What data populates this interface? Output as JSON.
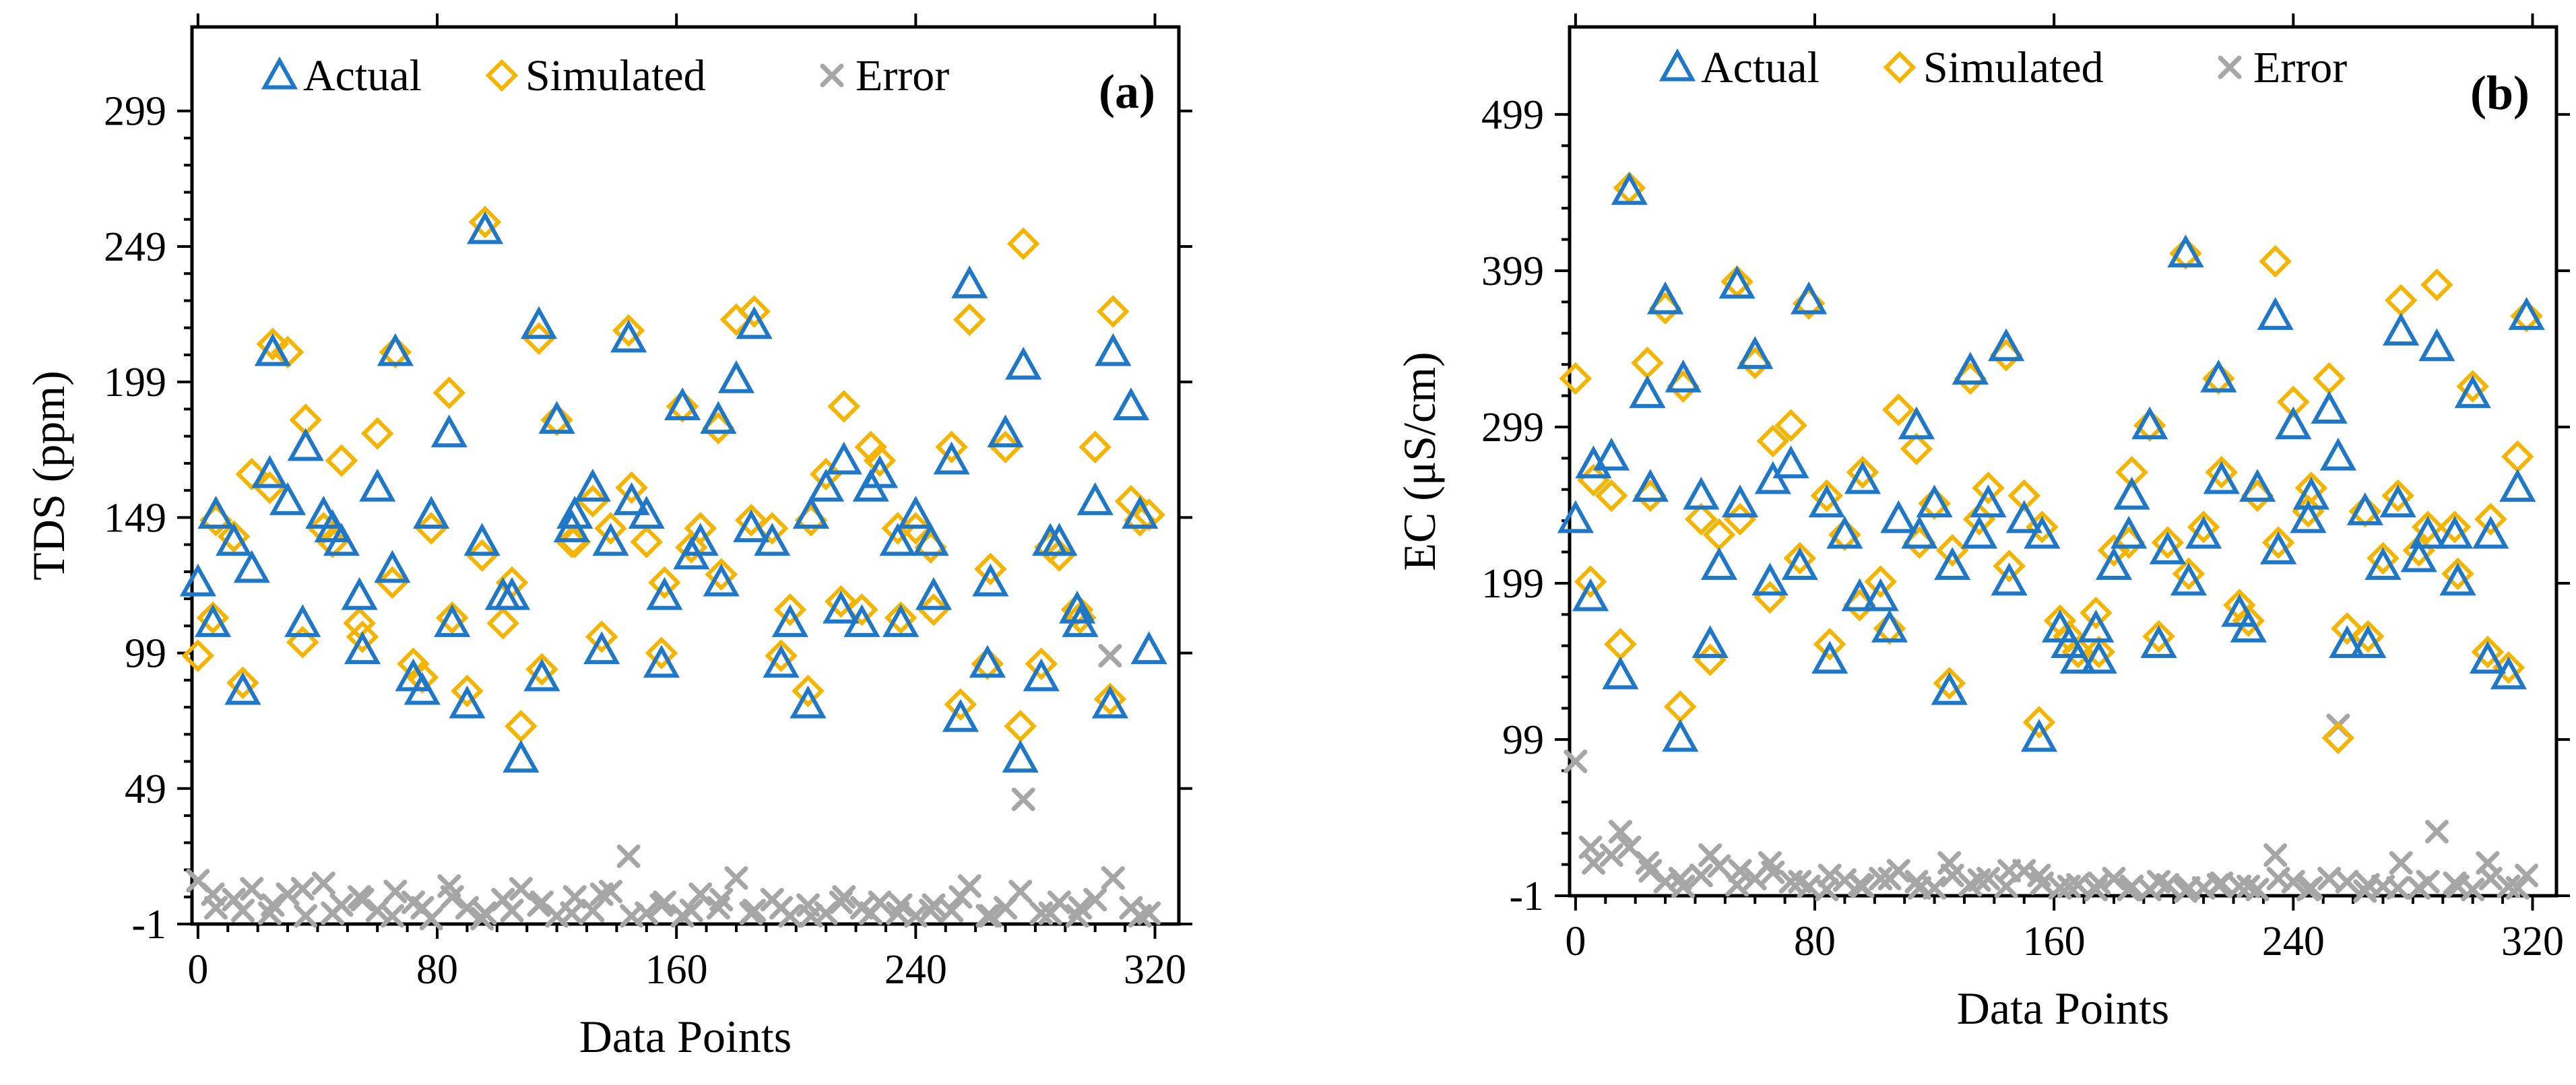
{
  "colors": {
    "actual": "#1f77c8",
    "simulated": "#f5b400",
    "error": "#a6a6a6",
    "axis": "#000000"
  },
  "icons": {
    "actual": "triangle-outline-icon",
    "simulated": "diamond-outline-icon",
    "error": "x-cross-icon"
  },
  "chart_data": [
    {
      "type": "scatter",
      "panel_label": "(a)",
      "title": "",
      "xlabel": "Data Points",
      "ylabel": "TDS (ppm)",
      "xlim": [
        -2,
        328
      ],
      "ylim": [
        -1,
        330
      ],
      "xticks": [
        0,
        80,
        160,
        240,
        320
      ],
      "yticks": [
        -1,
        49,
        99,
        149,
        199,
        249,
        299
      ],
      "legend": [
        "Actual",
        "Simulated",
        "Error"
      ],
      "legend_position": "top",
      "series": [
        {
          "name": "Actual",
          "x": [
            0,
            6,
            12,
            18,
            24,
            30,
            36,
            42,
            48,
            54,
            60,
            66,
            72,
            78,
            84,
            90,
            96,
            102,
            108,
            114,
            120,
            126,
            132,
            138,
            144,
            150,
            156,
            162,
            168,
            174,
            180,
            186,
            192,
            198,
            204,
            210,
            216,
            222,
            228,
            234,
            240,
            246,
            252,
            258,
            264,
            270,
            276,
            282,
            288,
            294,
            300,
            306,
            312,
            318,
            5,
            15,
            25,
            35,
            45,
            55,
            65,
            75,
            85,
            95,
            105,
            115,
            125,
            135,
            145,
            155,
            165,
            175,
            185,
            195,
            205,
            215,
            225,
            235,
            245,
            255,
            265,
            275,
            285,
            295,
            305,
            315
          ],
          "y": [
            125,
            150,
            140,
            130,
            165,
            155,
            175,
            150,
            140,
            120,
            160,
            210,
            90,
            150,
            180,
            80,
            255,
            120,
            60,
            220,
            185,
            150,
            160,
            140,
            215,
            150,
            120,
            190,
            140,
            185,
            200,
            220,
            140,
            110,
            80,
            160,
            170,
            110,
            165,
            140,
            150,
            120,
            170,
            235,
            95,
            180,
            205,
            90,
            140,
            115,
            155,
            210,
            190,
            100,
            110,
            85,
            210,
            110,
            145,
            100,
            130,
            85,
            110,
            140,
            120,
            90,
            145,
            100,
            155,
            95,
            135,
            125,
            145,
            95,
            150,
            115,
            160,
            110,
            140,
            75,
            125,
            60,
            140,
            110,
            80,
            150
          ]
        },
        {
          "name": "Simulated",
          "x": [
            0,
            6,
            12,
            18,
            24,
            30,
            36,
            42,
            48,
            54,
            60,
            66,
            72,
            78,
            84,
            90,
            96,
            102,
            108,
            114,
            120,
            126,
            132,
            138,
            144,
            150,
            156,
            162,
            168,
            174,
            180,
            186,
            192,
            198,
            204,
            210,
            216,
            222,
            228,
            234,
            240,
            246,
            252,
            258,
            264,
            270,
            276,
            282,
            288,
            294,
            300,
            306,
            312,
            318,
            5,
            15,
            25,
            35,
            45,
            55,
            65,
            75,
            85,
            95,
            105,
            115,
            125,
            135,
            145,
            155,
            165,
            175,
            185,
            195,
            205,
            215,
            225,
            235,
            245,
            255,
            265,
            275,
            285,
            295,
            305,
            315
          ],
          "y": [
            98,
            148,
            142,
            165,
            160,
            210,
            185,
            145,
            170,
            110,
            180,
            210,
            95,
            145,
            195,
            85,
            258,
            110,
            72,
            215,
            185,
            140,
            155,
            145,
            218,
            140,
            125,
            190,
            145,
            182,
            222,
            225,
            145,
            115,
            85,
            165,
            190,
            115,
            170,
            145,
            145,
            115,
            175,
            222,
            95,
            175,
            250,
            95,
            135,
            115,
            175,
            225,
            155,
            150,
            112,
            88,
            213,
            103,
            140,
            105,
            125,
            90,
            112,
            135,
            125,
            93,
            140,
            105,
            160,
            99,
            138,
            128,
            148,
            98,
            148,
            118,
            175,
            112,
            138,
            80,
            130,
            72,
            138,
            112,
            82,
            148
          ]
        },
        {
          "name": "Error",
          "x": [
            0,
            6,
            12,
            18,
            24,
            30,
            36,
            42,
            48,
            54,
            60,
            66,
            72,
            78,
            84,
            90,
            96,
            102,
            108,
            114,
            120,
            126,
            132,
            138,
            144,
            150,
            156,
            162,
            168,
            174,
            180,
            186,
            192,
            198,
            204,
            210,
            216,
            222,
            228,
            234,
            240,
            246,
            252,
            258,
            264,
            270,
            276,
            282,
            288,
            294,
            300,
            306,
            312,
            318,
            5,
            15,
            25,
            35,
            45,
            55,
            65,
            75,
            85,
            95,
            105,
            115,
            125,
            135,
            145,
            155,
            165,
            175,
            185,
            195,
            205,
            215,
            225,
            235,
            245,
            255,
            265,
            275,
            285,
            295,
            305,
            315
          ],
          "y": [
            15,
            5,
            8,
            12,
            3,
            10,
            2,
            14,
            6,
            9,
            4,
            11,
            7,
            1,
            13,
            5,
            3,
            8,
            12,
            6,
            2,
            9,
            4,
            11,
            24,
            3,
            7,
            2,
            10,
            5,
            16,
            4,
            8,
            2,
            6,
            3,
            9,
            5,
            7,
            3,
            2,
            6,
            4,
            13,
            2,
            5,
            45,
            3,
            7,
            2,
            8,
            16,
            5,
            3,
            10,
            4,
            6,
            12,
            3,
            8,
            2,
            5,
            9,
            1,
            4,
            7,
            3,
            10,
            2,
            6,
            4,
            8,
            3,
            5,
            2,
            7,
            3,
            6,
            4,
            9,
            2,
            11,
            3,
            5,
            98,
            2
          ]
        }
      ]
    },
    {
      "type": "scatter",
      "panel_label": "(b)",
      "title": "",
      "xlabel": "Data Points",
      "ylabel": "EC (μS/cm)",
      "xlim": [
        -2,
        328
      ],
      "ylim": [
        -1,
        555
      ],
      "xticks": [
        0,
        80,
        160,
        240,
        320
      ],
      "yticks": [
        -1,
        99,
        199,
        299,
        399,
        499
      ],
      "legend": [
        "Actual",
        "Simulated",
        "Error"
      ],
      "legend_position": "top",
      "series": [
        {
          "name": "Actual",
          "x": [
            0,
            6,
            12,
            18,
            24,
            30,
            36,
            42,
            48,
            54,
            60,
            66,
            72,
            78,
            84,
            90,
            96,
            102,
            108,
            114,
            120,
            126,
            132,
            138,
            144,
            150,
            156,
            162,
            168,
            174,
            180,
            186,
            192,
            198,
            204,
            210,
            216,
            222,
            228,
            234,
            240,
            246,
            252,
            258,
            264,
            270,
            276,
            282,
            288,
            294,
            300,
            306,
            312,
            318,
            5,
            15,
            25,
            35,
            45,
            55,
            65,
            75,
            85,
            95,
            105,
            115,
            125,
            135,
            145,
            155,
            165,
            175,
            185,
            195,
            205,
            215,
            225,
            235,
            245,
            255,
            265,
            275,
            285,
            295,
            305,
            315
          ],
          "y": [
            240,
            275,
            280,
            450,
            320,
            380,
            330,
            255,
            210,
            390,
            345,
            265,
            275,
            380,
            250,
            230,
            265,
            190,
            240,
            300,
            250,
            210,
            335,
            250,
            350,
            240,
            230,
            170,
            150,
            170,
            210,
            255,
            300,
            220,
            410,
            230,
            265,
            180,
            260,
            370,
            300,
            255,
            310,
            160,
            245,
            210,
            360,
            215,
            350,
            230,
            320,
            230,
            140,
            370,
            190,
            140,
            260,
            100,
            160,
            250,
            200,
            210,
            150,
            190,
            170,
            230,
            130,
            230,
            200,
            100,
            160,
            150,
            230,
            160,
            200,
            330,
            170,
            220,
            240,
            280,
            160,
            250,
            230,
            200,
            150,
            260
          ]
        },
        {
          "name": "Simulated",
          "x": [
            0,
            6,
            12,
            18,
            24,
            30,
            36,
            42,
            48,
            54,
            60,
            66,
            72,
            78,
            84,
            90,
            96,
            102,
            108,
            114,
            120,
            126,
            132,
            138,
            144,
            150,
            156,
            162,
            168,
            174,
            180,
            186,
            192,
            198,
            204,
            210,
            216,
            222,
            228,
            234,
            240,
            246,
            252,
            258,
            264,
            270,
            276,
            282,
            288,
            294,
            300,
            306,
            312,
            318,
            5,
            15,
            25,
            35,
            45,
            55,
            65,
            75,
            85,
            95,
            105,
            115,
            125,
            135,
            145,
            155,
            165,
            175,
            185,
            195,
            205,
            215,
            225,
            235,
            245,
            255,
            265,
            275,
            285,
            295,
            305,
            315
          ],
          "y": [
            330,
            265,
            255,
            452,
            340,
            375,
            325,
            240,
            230,
            392,
            340,
            290,
            300,
            378,
            255,
            230,
            270,
            200,
            310,
            285,
            250,
            220,
            330,
            260,
            345,
            255,
            235,
            175,
            155,
            180,
            220,
            270,
            300,
            225,
            410,
            235,
            270,
            185,
            255,
            405,
            315,
            260,
            330,
            170,
            245,
            215,
            380,
            220,
            390,
            235,
            325,
            240,
            145,
            370,
            200,
            160,
            255,
            120,
            150,
            240,
            190,
            215,
            160,
            185,
            170,
            225,
            135,
            240,
            210,
            110,
            165,
            155,
            225,
            165,
            205,
            330,
            175,
            225,
            245,
            100,
            165,
            255,
            235,
            205,
            155,
            280
          ]
        },
        {
          "name": "Error",
          "x": [
            0,
            6,
            12,
            18,
            24,
            30,
            36,
            42,
            48,
            54,
            60,
            66,
            72,
            78,
            84,
            90,
            96,
            102,
            108,
            114,
            120,
            126,
            132,
            138,
            144,
            150,
            156,
            162,
            168,
            174,
            180,
            186,
            192,
            198,
            204,
            210,
            216,
            222,
            228,
            234,
            240,
            246,
            252,
            258,
            264,
            270,
            276,
            282,
            288,
            294,
            300,
            306,
            312,
            318,
            5,
            15,
            25,
            35,
            45,
            55,
            65,
            75,
            85,
            95,
            105,
            115,
            125,
            135,
            145,
            155,
            165,
            175,
            185,
            195,
            205,
            215,
            225,
            235,
            245,
            255,
            265,
            275,
            285,
            295,
            305,
            315
          ],
          "y": [
            85,
            20,
            25,
            30,
            20,
            8,
            5,
            12,
            18,
            6,
            10,
            14,
            8,
            5,
            3,
            9,
            5,
            10,
            15,
            8,
            4,
            12,
            6,
            10,
            5,
            15,
            7,
            4,
            6,
            3,
            10,
            5,
            3,
            6,
            2,
            4,
            7,
            5,
            3,
            25,
            8,
            4,
            10,
            8,
            2,
            5,
            20,
            4,
            40,
            7,
            3,
            10,
            5,
            12,
            30,
            40,
            15,
            10,
            25,
            15,
            20,
            8,
            12,
            6,
            10,
            4,
            20,
            9,
            15,
            12,
            5,
            7,
            3,
            8,
            4,
            6,
            5,
            10,
            3,
            108,
            6,
            4,
            8,
            5,
            20,
            4
          ]
        }
      ]
    }
  ]
}
